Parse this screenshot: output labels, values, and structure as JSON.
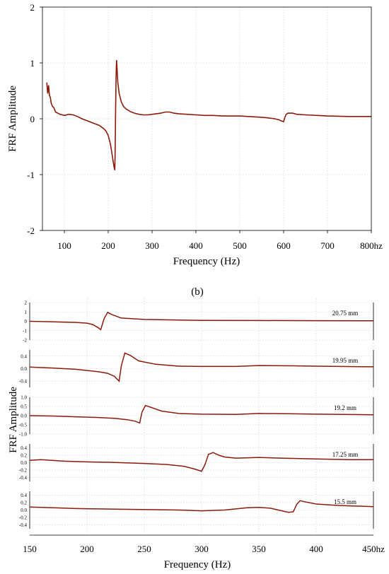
{
  "chart_data": [
    {
      "type": "line",
      "xlabel": "Frequency (Hz)",
      "ylabel": "FRF Amplitude",
      "xlim": [
        50,
        800
      ],
      "ylim": [
        -2,
        2
      ],
      "xticks": [
        "100",
        "200",
        "300",
        "400",
        "500",
        "600",
        "700",
        "800hz"
      ],
      "yticks": [
        "2",
        "1",
        "0",
        "-1",
        "-2"
      ],
      "grid": true,
      "color": "#8b1a0a",
      "x": [
        60,
        62,
        64,
        66,
        68,
        70,
        73,
        76,
        80,
        85,
        90,
        95,
        100,
        110,
        120,
        130,
        140,
        150,
        160,
        170,
        180,
        190,
        195,
        200,
        205,
        208,
        211,
        213,
        215,
        216,
        217,
        218,
        219,
        220,
        222,
        225,
        230,
        235,
        240,
        250,
        260,
        270,
        280,
        290,
        300,
        310,
        320,
        330,
        340,
        350,
        360,
        380,
        400,
        420,
        440,
        460,
        480,
        500,
        520,
        540,
        560,
        580,
        590,
        595,
        600,
        603,
        606,
        610,
        615,
        620,
        630,
        650,
        700,
        750,
        800
      ],
      "y": [
        0.65,
        0.45,
        0.6,
        0.42,
        0.38,
        0.28,
        0.22,
        0.2,
        0.12,
        0.1,
        0.08,
        0.07,
        0.06,
        0.08,
        0.07,
        0.04,
        0.0,
        -0.03,
        -0.06,
        -0.09,
        -0.12,
        -0.18,
        -0.22,
        -0.3,
        -0.45,
        -0.6,
        -0.75,
        -0.85,
        -0.92,
        -0.5,
        0.2,
        0.8,
        1.05,
        0.92,
        0.65,
        0.45,
        0.3,
        0.22,
        0.18,
        0.13,
        0.1,
        0.08,
        0.07,
        0.07,
        0.08,
        0.09,
        0.1,
        0.12,
        0.12,
        0.1,
        0.09,
        0.08,
        0.07,
        0.06,
        0.06,
        0.05,
        0.05,
        0.05,
        0.04,
        0.03,
        0.02,
        0.0,
        -0.02,
        -0.04,
        -0.05,
        0.03,
        0.08,
        0.1,
        0.1,
        0.1,
        0.08,
        0.07,
        0.05,
        0.04,
        0.04
      ]
    },
    {
      "type": "line",
      "panel_label": "(b)",
      "xlabel": "Frequency (Hz)",
      "ylabel": "FRF Amplitude",
      "xlim": [
        150,
        450
      ],
      "xticks": [
        "150",
        "200",
        "250",
        "300",
        "350",
        "400",
        "450hz"
      ],
      "grid": true,
      "color": "#8b1a0a",
      "series": [
        {
          "name": "20.75 mm",
          "ylim": [
            -2,
            2
          ],
          "yticks": [
            "2",
            "1",
            "0",
            "-1",
            "-2"
          ],
          "x": [
            150,
            170,
            190,
            200,
            205,
            210,
            212,
            215,
            218,
            222,
            230,
            250,
            300,
            350,
            400,
            450
          ],
          "y": [
            0.0,
            -0.05,
            -0.12,
            -0.2,
            -0.35,
            -0.7,
            -0.9,
            0.3,
            0.95,
            0.7,
            0.35,
            0.2,
            0.1,
            0.08,
            0.07,
            0.05
          ]
        },
        {
          "name": "19.95 mm",
          "ylim": [
            -0.6,
            0.6
          ],
          "yticks": [
            "0.4",
            "0.0",
            "-0.4"
          ],
          "x": [
            150,
            170,
            190,
            200,
            210,
            218,
            224,
            228,
            230,
            233,
            238,
            245,
            260,
            280,
            300,
            330,
            350,
            380,
            400,
            420,
            450
          ],
          "y": [
            0.05,
            0.02,
            -0.02,
            -0.06,
            -0.1,
            -0.15,
            -0.25,
            -0.4,
            0.1,
            0.5,
            0.42,
            0.25,
            0.14,
            0.08,
            0.07,
            0.07,
            0.1,
            0.09,
            0.08,
            0.07,
            0.06
          ]
        },
        {
          "name": "19.2 mm",
          "ylim": [
            -1.0,
            1.0
          ],
          "yticks": [
            "1.0",
            "0.5",
            "0.0",
            "-0.5",
            "-1.0"
          ],
          "x": [
            150,
            170,
            190,
            210,
            225,
            235,
            242,
            246,
            248,
            251,
            256,
            265,
            280,
            300,
            330,
            350,
            380,
            400,
            450
          ],
          "y": [
            0.0,
            -0.02,
            -0.06,
            -0.1,
            -0.15,
            -0.22,
            -0.3,
            -0.4,
            0.2,
            0.55,
            0.45,
            0.25,
            0.12,
            0.08,
            0.07,
            0.12,
            0.1,
            0.08,
            0.05
          ]
        },
        {
          "name": "17.25 mm",
          "ylim": [
            -0.5,
            0.5
          ],
          "yticks": [
            "0.4",
            "0.2",
            "0.0",
            "-0.2",
            "-0.4"
          ],
          "x": [
            150,
            160,
            180,
            200,
            220,
            250,
            270,
            285,
            295,
            300,
            303,
            306,
            310,
            315,
            320,
            330,
            350,
            370,
            400,
            430,
            450
          ],
          "y": [
            0.06,
            0.08,
            0.04,
            0.02,
            0.01,
            -0.02,
            -0.05,
            -0.1,
            -0.18,
            -0.23,
            -0.05,
            0.22,
            0.27,
            0.2,
            0.15,
            0.12,
            0.14,
            0.12,
            0.1,
            0.08,
            0.08
          ]
        },
        {
          "name": "15.5 mm",
          "ylim": [
            -0.5,
            0.5
          ],
          "yticks": [
            "0.4",
            "0.2",
            "0.0",
            "-0.2",
            "-0.4"
          ],
          "x": [
            150,
            170,
            190,
            210,
            230,
            260,
            280,
            300,
            320,
            340,
            350,
            360,
            370,
            376,
            380,
            383,
            386,
            390,
            400,
            420,
            450
          ],
          "y": [
            0.08,
            0.06,
            0.04,
            0.03,
            0.02,
            0.01,
            0.0,
            -0.02,
            0.0,
            0.06,
            0.07,
            0.05,
            -0.02,
            -0.06,
            -0.05,
            0.15,
            0.25,
            0.22,
            0.16,
            0.12,
            0.09
          ]
        }
      ]
    }
  ]
}
